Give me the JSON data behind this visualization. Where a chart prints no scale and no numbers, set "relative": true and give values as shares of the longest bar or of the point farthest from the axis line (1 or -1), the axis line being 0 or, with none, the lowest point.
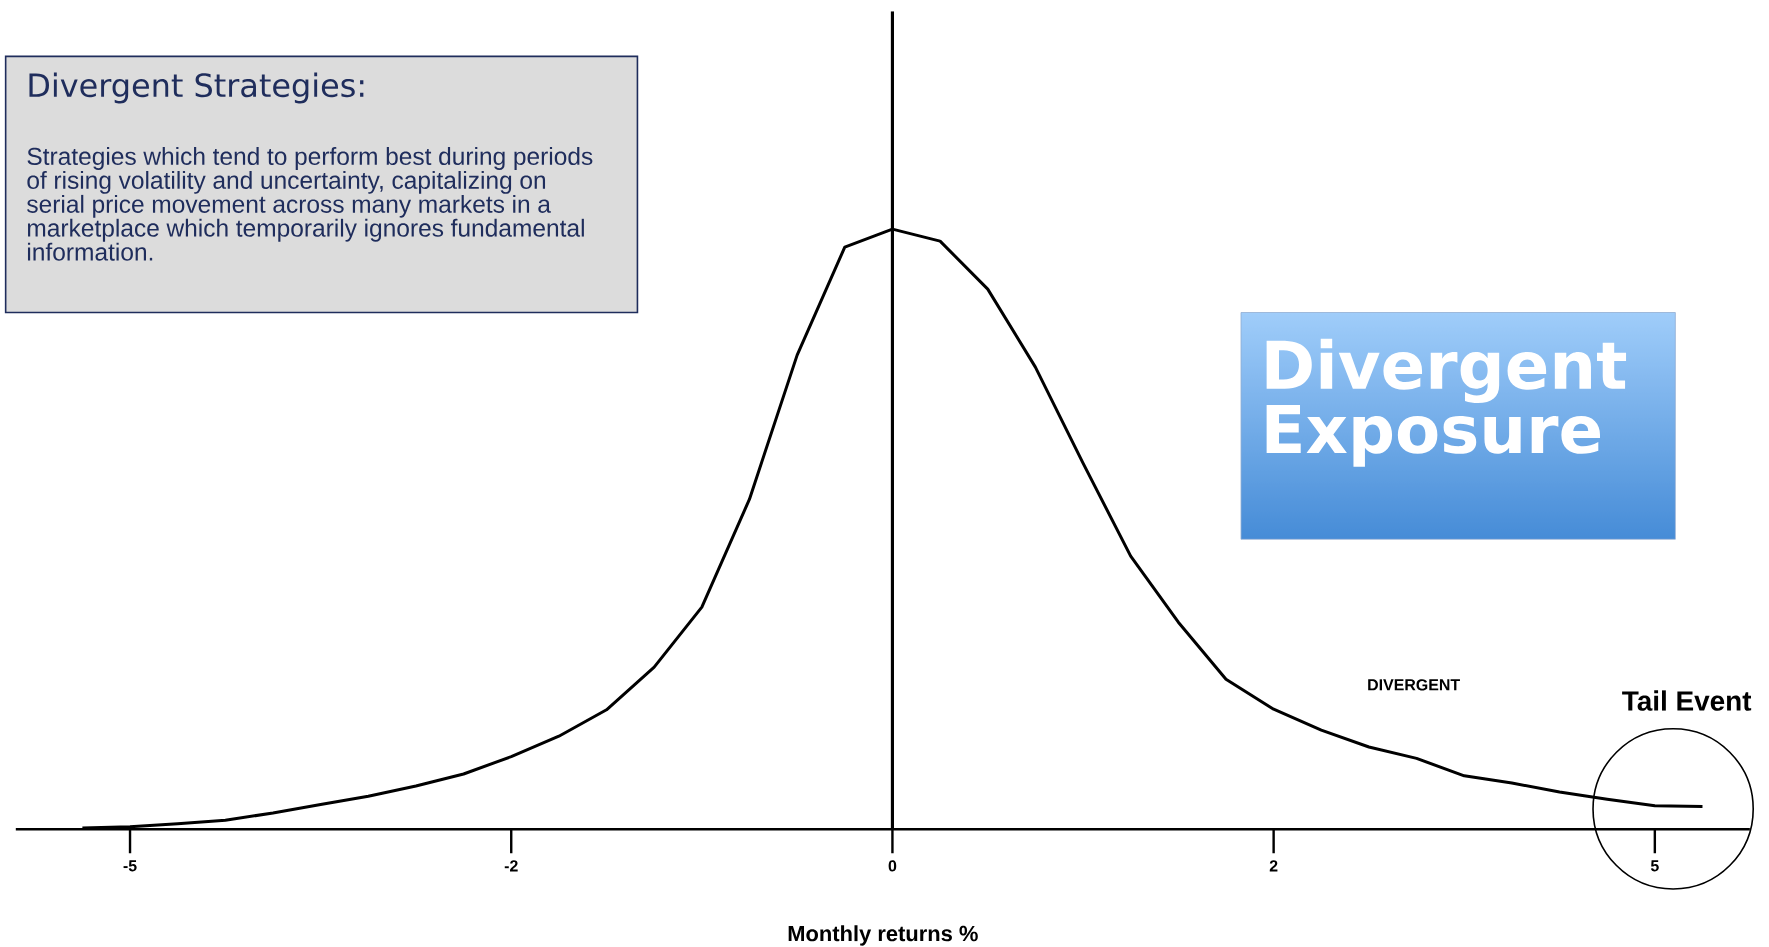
{
  "chart_data": {
    "type": "line",
    "relative": true,
    "title": "Divergent Strategies:",
    "xlabel": "Monthly returns %",
    "annotations": [
      "Strategies which tend to perform best during periods of rising volatility and uncertainty, capitalizing on serial price movement across many markets in a marketplace which temporarily ignores fundamental information.",
      "Divergent Exposure",
      "DIVERGENT",
      "Tail Event"
    ],
    "categories": [
      null,
      "-5",
      null,
      null,
      null,
      null,
      null,
      null,
      null,
      "-2",
      null,
      null,
      null,
      null,
      null,
      null,
      null,
      "0",
      null,
      null,
      null,
      null,
      null,
      null,
      null,
      "2",
      null,
      null,
      null,
      null,
      null,
      null,
      null,
      "5",
      null
    ],
    "series": [
      {
        "color": "#000000",
        "values": [
          0.002,
          0.004,
          0.009,
          0.015,
          0.027,
          0.041,
          0.055,
          0.072,
          0.092,
          0.121,
          0.155,
          0.199,
          0.27,
          0.37,
          0.55,
          0.79,
          0.97,
          1,
          0.98,
          0.9,
          0.77,
          0.61,
          0.455,
          0.345,
          0.25,
          0.2,
          0.165,
          0.137,
          0.118,
          0.089,
          0.077,
          0.062,
          0.05,
          0.039,
          0.038
        ]
      }
    ],
    "ref_lines": [
      {
        "axis": "x",
        "value": "0",
        "color": "#000000"
      }
    ],
    "marker": "none",
    "line_style": "solid",
    "grid": false
  }
}
